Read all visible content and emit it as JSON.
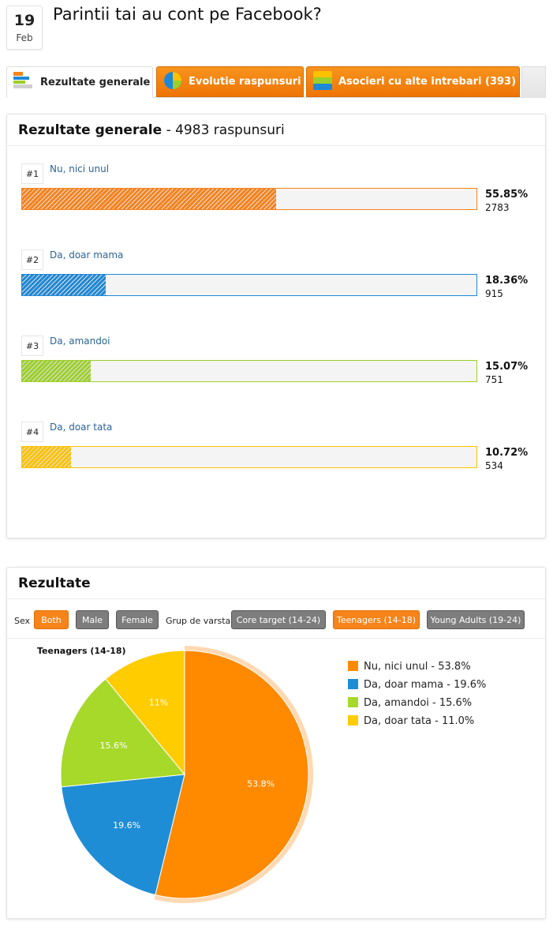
{
  "question": {
    "day": "19",
    "month": "Feb",
    "title": "Parintii tai au cont pe Facebook?"
  },
  "tabs": [
    {
      "label": "Rezultate generale",
      "icon": "bar-list-icon"
    },
    {
      "label": "Evolutie raspunsuri",
      "icon": "pie-icon"
    },
    {
      "label": "Asocieri cu alte intrebari (393)",
      "icon": "stack-icon"
    }
  ],
  "general": {
    "title": "Rezultate generale",
    "count_text": "- 4983 raspunsuri",
    "options": [
      {
        "rank": "#1",
        "label": "Nu, nici unul",
        "percent_text": "55.85%",
        "percent": 55.85,
        "count": "2783",
        "color": "#f7821b"
      },
      {
        "rank": "#2",
        "label": "Da, doar mama",
        "percent_text": "18.36%",
        "percent": 18.36,
        "count": "915",
        "color": "#1f88d6"
      },
      {
        "rank": "#3",
        "label": "Da, amandoi",
        "percent_text": "15.07%",
        "percent": 15.07,
        "count": "751",
        "color": "#9ccf2a"
      },
      {
        "rank": "#4",
        "label": "Da, doar tata",
        "percent_text": "10.72%",
        "percent": 10.72,
        "count": "534",
        "color": "#fcc100"
      }
    ]
  },
  "results": {
    "title": "Rezultate",
    "sex_label": "Sex",
    "sex_filters": [
      {
        "label": "Both",
        "active": true
      },
      {
        "label": "Male",
        "active": false
      },
      {
        "label": "Female",
        "active": false
      }
    ],
    "age_label": "Grup de varsta",
    "age_filters": [
      {
        "label": "Core target (14-24)",
        "active": false
      },
      {
        "label": "Teenagers (14-18)",
        "active": true
      },
      {
        "label": "Young Adults (19-24)",
        "active": false
      }
    ]
  },
  "chart_data": {
    "type": "pie",
    "title": "Teenagers (14-18)",
    "slices": [
      {
        "name": "Nu, nici unul",
        "value": 53.8,
        "label": "53.8%",
        "legend": "Nu, nici unul - 53.8%",
        "color": "#ff8a00"
      },
      {
        "name": "Da, doar mama",
        "value": 19.6,
        "label": "19.6%",
        "legend": "Da, doar mama - 19.6%",
        "color": "#1f8dd6"
      },
      {
        "name": "Da, amandoi",
        "value": 15.6,
        "label": "15.6%",
        "legend": "Da, amandoi - 15.6%",
        "color": "#a6d92a"
      },
      {
        "name": "Da, doar tata",
        "value": 11.0,
        "label": "11%",
        "legend": "Da, doar tata - 11.0%",
        "color": "#ffcc00"
      }
    ],
    "legend_position": "right"
  }
}
